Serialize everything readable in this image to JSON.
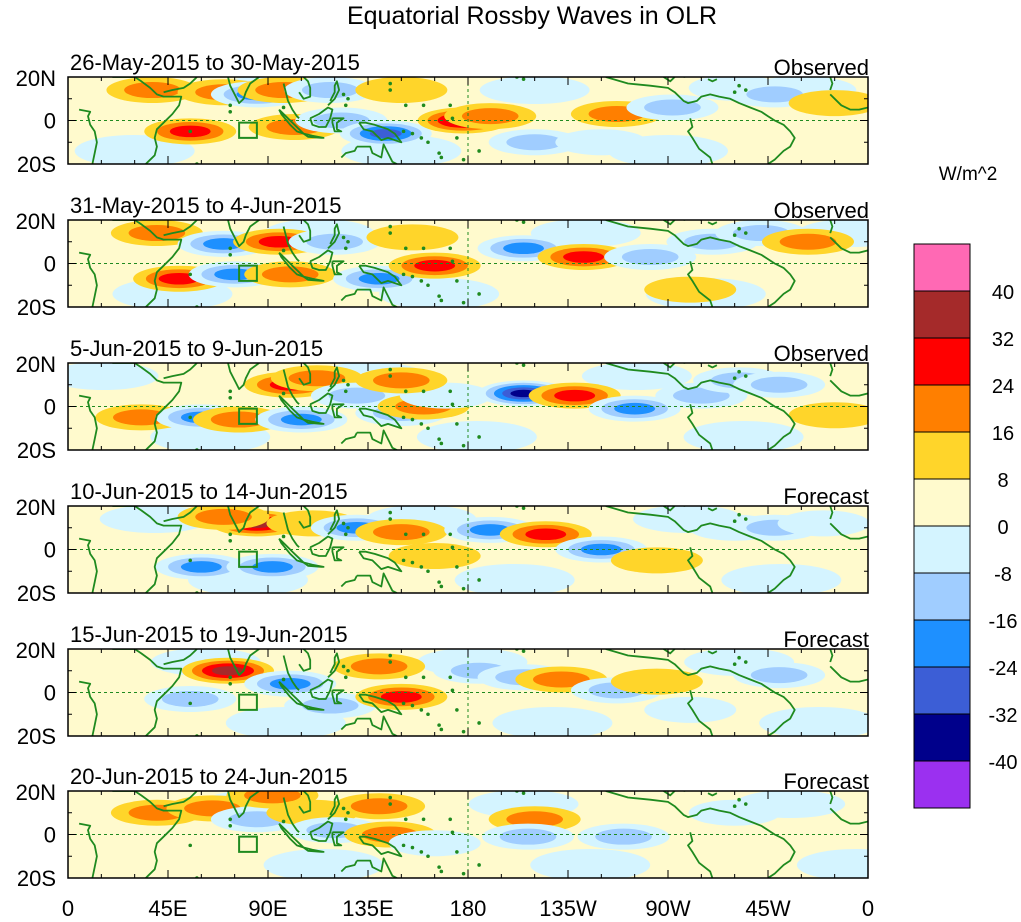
{
  "title": "Equatorial Rossby Waves in OLR",
  "colorbar": {
    "units": "W/m^2",
    "colors": [
      "#9b30f0",
      "#00008b",
      "#3c5ed6",
      "#1e90ff",
      "#a0cdff",
      "#d4f4ff",
      "#fffacd",
      "#ffd52a",
      "#ff7f00",
      "#ff0000",
      "#a52a2a",
      "#ff69b4"
    ],
    "labels": [
      "-40",
      "-32",
      "-24",
      "-16",
      "-8",
      "0",
      "8",
      "16",
      "24",
      "32",
      "40"
    ]
  },
  "x_ticks": [
    "0",
    "45E",
    "90E",
    "135E",
    "180",
    "135W",
    "90W",
    "45W",
    "0"
  ],
  "y_ticks": [
    "20N",
    "0",
    "20S"
  ],
  "panels": [
    {
      "date_range": "26-May-2015 to 30-May-2015",
      "status": "Observed",
      "anomalies": [
        {
          "lon": 55,
          "lat": -5,
          "v": 20
        },
        {
          "lon": 38,
          "lat": 14,
          "v": 14
        },
        {
          "lon": 70,
          "lat": 13,
          "v": 16
        },
        {
          "lon": 85,
          "lat": 12,
          "v": -22
        },
        {
          "lon": 97,
          "lat": 14,
          "v": 12
        },
        {
          "lon": 102,
          "lat": -3,
          "v": 12
        },
        {
          "lon": 118,
          "lat": 14,
          "v": -14
        },
        {
          "lon": 123,
          "lat": 0,
          "v": -14
        },
        {
          "lon": 143,
          "lat": -6,
          "v": -26
        },
        {
          "lon": 178,
          "lat": 0,
          "v": 28
        },
        {
          "lon": 190,
          "lat": 2,
          "v": 16
        },
        {
          "lon": 150,
          "lat": 14,
          "v": 8
        },
        {
          "lon": 210,
          "lat": -10,
          "v": -10
        },
        {
          "lon": 240,
          "lat": -10,
          "v": -8
        },
        {
          "lon": 247,
          "lat": 3,
          "v": 14
        },
        {
          "lon": 272,
          "lat": 6,
          "v": -12
        },
        {
          "lon": 300,
          "lat": 15,
          "v": -8
        },
        {
          "lon": 318,
          "lat": 12,
          "v": -10
        },
        {
          "lon": 345,
          "lat": 8,
          "v": 6
        }
      ]
    },
    {
      "date_range": "31-May-2015 to 4-Jun-2015",
      "status": "Observed",
      "anomalies": [
        {
          "lon": 50,
          "lat": -7,
          "v": 22
        },
        {
          "lon": 40,
          "lat": 14,
          "v": 12
        },
        {
          "lon": 70,
          "lat": 9,
          "v": -20
        },
        {
          "lon": 75,
          "lat": -5,
          "v": -18
        },
        {
          "lon": 95,
          "lat": 10,
          "v": 20
        },
        {
          "lon": 100,
          "lat": -5,
          "v": 12
        },
        {
          "lon": 120,
          "lat": 10,
          "v": -12
        },
        {
          "lon": 140,
          "lat": -7,
          "v": -24
        },
        {
          "lon": 165,
          "lat": -1,
          "v": 20
        },
        {
          "lon": 155,
          "lat": 12,
          "v": 8
        },
        {
          "lon": 205,
          "lat": 7,
          "v": -24
        },
        {
          "lon": 232,
          "lat": 3,
          "v": 18
        },
        {
          "lon": 262,
          "lat": 3,
          "v": -12
        },
        {
          "lon": 290,
          "lat": 10,
          "v": -10
        },
        {
          "lon": 312,
          "lat": 14,
          "v": -16
        },
        {
          "lon": 333,
          "lat": 10,
          "v": 14
        },
        {
          "lon": 280,
          "lat": -12,
          "v": 8
        }
      ]
    },
    {
      "date_range": "5-Jun-2015 to 9-Jun-2015",
      "status": "Observed",
      "anomalies": [
        {
          "lon": 33,
          "lat": -5,
          "v": 16
        },
        {
          "lon": 60,
          "lat": -5,
          "v": -22
        },
        {
          "lon": 77,
          "lat": -6,
          "v": 12
        },
        {
          "lon": 100,
          "lat": 10,
          "v": 20
        },
        {
          "lon": 112,
          "lat": 13,
          "v": 14
        },
        {
          "lon": 105,
          "lat": -6,
          "v": -20
        },
        {
          "lon": 130,
          "lat": 5,
          "v": -12
        },
        {
          "lon": 150,
          "lat": -3,
          "v": -10
        },
        {
          "lon": 160,
          "lat": 0,
          "v": 14
        },
        {
          "lon": 170,
          "lat": 5,
          "v": -8
        },
        {
          "lon": 205,
          "lat": 6,
          "v": -34
        },
        {
          "lon": 228,
          "lat": 5,
          "v": 22
        },
        {
          "lon": 255,
          "lat": -1,
          "v": -20
        },
        {
          "lon": 285,
          "lat": 5,
          "v": -12
        },
        {
          "lon": 302,
          "lat": 12,
          "v": -14
        },
        {
          "lon": 320,
          "lat": 10,
          "v": -14
        },
        {
          "lon": 345,
          "lat": -4,
          "v": 8
        },
        {
          "lon": 150,
          "lat": 12,
          "v": 10
        }
      ]
    },
    {
      "date_range": "10-Jun-2015 to 14-Jun-2015",
      "status": "Forecast",
      "anomalies": [
        {
          "lon": 85,
          "lat": 12,
          "v": 30
        },
        {
          "lon": 70,
          "lat": 15,
          "v": 16
        },
        {
          "lon": 60,
          "lat": -8,
          "v": -20
        },
        {
          "lon": 92,
          "lat": -8,
          "v": -18
        },
        {
          "lon": 110,
          "lat": 12,
          "v": 8
        },
        {
          "lon": 130,
          "lat": 10,
          "v": -20
        },
        {
          "lon": 150,
          "lat": 8,
          "v": 10
        },
        {
          "lon": 165,
          "lat": -3,
          "v": 8
        },
        {
          "lon": 190,
          "lat": 9,
          "v": -22
        },
        {
          "lon": 215,
          "lat": 7,
          "v": 24
        },
        {
          "lon": 240,
          "lat": 0,
          "v": -18
        },
        {
          "lon": 265,
          "lat": -5,
          "v": 8
        },
        {
          "lon": 300,
          "lat": 10,
          "v": -8
        },
        {
          "lon": 318,
          "lat": 10,
          "v": -12
        },
        {
          "lon": 340,
          "lat": 12,
          "v": -8
        }
      ]
    },
    {
      "date_range": "15-Jun-2015 to 19-Jun-2015",
      "status": "Forecast",
      "anomalies": [
        {
          "lon": 72,
          "lat": 10,
          "v": 30
        },
        {
          "lon": 55,
          "lat": -3,
          "v": -10
        },
        {
          "lon": 100,
          "lat": 4,
          "v": -20
        },
        {
          "lon": 118,
          "lat": -6,
          "v": -14
        },
        {
          "lon": 140,
          "lat": 12,
          "v": 12
        },
        {
          "lon": 150,
          "lat": -2,
          "v": 18
        },
        {
          "lon": 185,
          "lat": 10,
          "v": -12
        },
        {
          "lon": 205,
          "lat": 7,
          "v": -16
        },
        {
          "lon": 222,
          "lat": 6,
          "v": 16
        },
        {
          "lon": 247,
          "lat": 1,
          "v": -16
        },
        {
          "lon": 265,
          "lat": 5,
          "v": 8
        },
        {
          "lon": 280,
          "lat": -8,
          "v": -8
        },
        {
          "lon": 320,
          "lat": 8,
          "v": -10
        }
      ]
    },
    {
      "date_range": "20-Jun-2015 to 24-Jun-2015",
      "status": "Forecast",
      "anomalies": [
        {
          "lon": 40,
          "lat": 10,
          "v": 10
        },
        {
          "lon": 65,
          "lat": 12,
          "v": 10
        },
        {
          "lon": 85,
          "lat": 7,
          "v": -16
        },
        {
          "lon": 92,
          "lat": 18,
          "v": 12
        },
        {
          "lon": 110,
          "lat": 10,
          "v": 8
        },
        {
          "lon": 120,
          "lat": 2,
          "v": -14
        },
        {
          "lon": 140,
          "lat": 13,
          "v": 10
        },
        {
          "lon": 145,
          "lat": 0,
          "v": 14
        },
        {
          "lon": 165,
          "lat": -4,
          "v": -8
        },
        {
          "lon": 210,
          "lat": 7,
          "v": 12
        },
        {
          "lon": 207,
          "lat": -1,
          "v": -14
        },
        {
          "lon": 250,
          "lat": -1,
          "v": -10
        },
        {
          "lon": 300,
          "lat": 10,
          "v": -8
        }
      ]
    }
  ]
}
